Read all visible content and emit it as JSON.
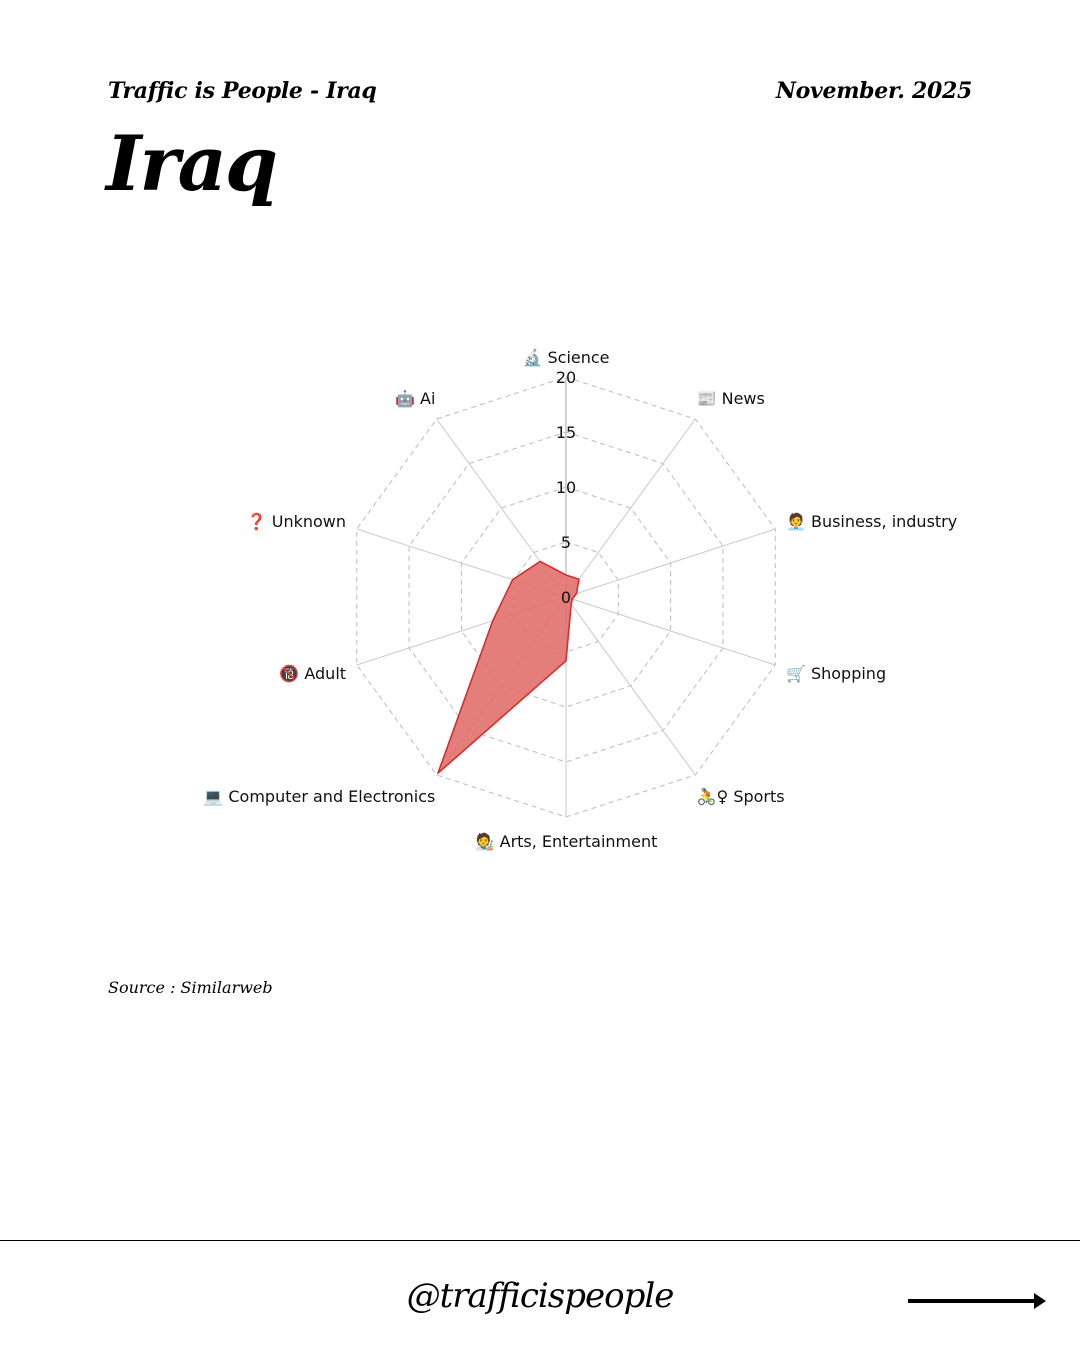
{
  "header": {
    "series_title": "Traffic is People - Iraq",
    "date": "November. 2025"
  },
  "page_title": "Iraq",
  "source": "Source : Similarweb",
  "footer": {
    "handle": "@trafficispeople",
    "next_icon": "right-arrow-icon"
  },
  "colors": {
    "fill": "#e0706b",
    "stroke": "#d32f2f",
    "grid": "#bbbbbb"
  },
  "chart_data": {
    "type": "radar",
    "title": "",
    "categories": [
      {
        "label": "Science",
        "icon": "microscope-icon",
        "emoji": "🔬"
      },
      {
        "label": "News",
        "icon": "newspaper-icon",
        "emoji": "📰"
      },
      {
        "label": "Business, industry",
        "icon": "office-worker-icon",
        "emoji": "🧑‍💼"
      },
      {
        "label": "Shopping",
        "icon": "shopping-cart-icon",
        "emoji": "🛒"
      },
      {
        "label": "Sports",
        "icon": "cyclist-icon",
        "emoji": "🚴♀"
      },
      {
        "label": "Arts, Entertainment",
        "icon": "artist-icon",
        "emoji": "🧑‍🎨"
      },
      {
        "label": "Computer and Electronics",
        "icon": "laptop-icon",
        "emoji": "💻"
      },
      {
        "label": "Adult",
        "icon": "no-under-18-icon",
        "emoji": "🔞"
      },
      {
        "label": "Unknown",
        "icon": "question-mark-icon",
        "emoji": "❓"
      },
      {
        "label": "Ai",
        "icon": "robot-icon",
        "emoji": "🤖"
      }
    ],
    "series": [
      {
        "name": "Iraq",
        "values": [
          2.0,
          2.0,
          1.0,
          0.6,
          0.8,
          5.8,
          19.8,
          7.0,
          5.1,
          4.0
        ]
      }
    ],
    "rlim": [
      0,
      20
    ],
    "ticks": [
      0,
      5,
      10,
      15,
      20
    ],
    "grid": true,
    "legend": "none"
  }
}
